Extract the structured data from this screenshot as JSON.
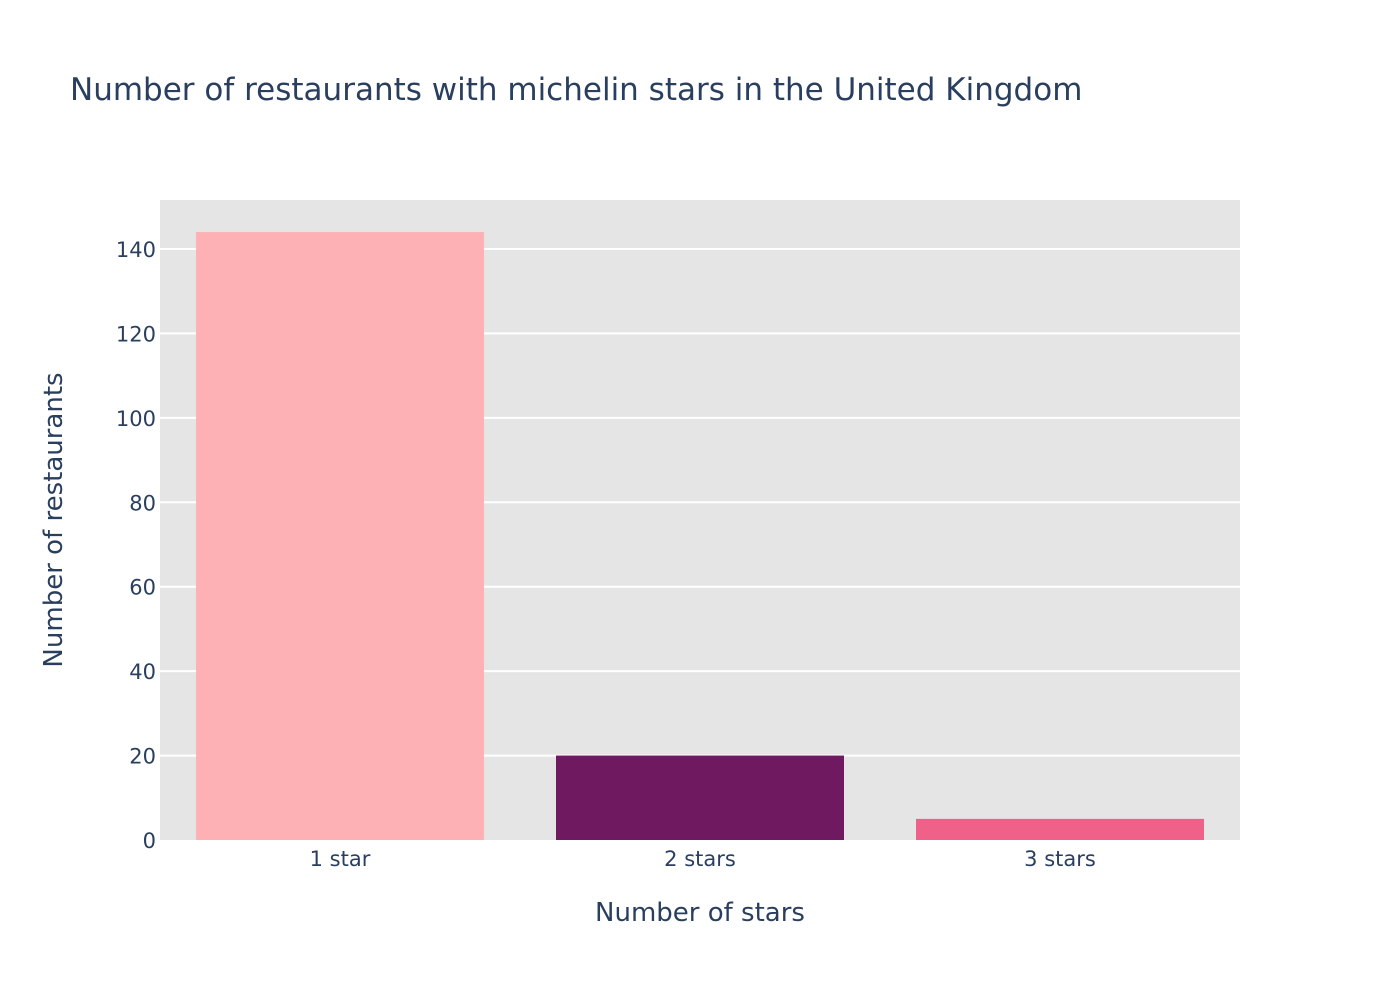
{
  "chart_data": {
    "type": "bar",
    "title": "Number of restaurants with michelin stars in the United Kingdom",
    "xlabel": "Number of stars",
    "ylabel": "Number of restaurants",
    "categories": [
      "1 star",
      "2 stars",
      "3 stars"
    ],
    "values": [
      144,
      20,
      5
    ],
    "bar_colors": [
      "#fdb1b5",
      "#6f1960",
      "#f0618a"
    ],
    "ylim": [
      0,
      151.6
    ],
    "yticks": [
      0,
      20,
      40,
      60,
      80,
      100,
      120,
      140
    ],
    "grid": true,
    "legend": "none",
    "plot_background": "#e5e5e5",
    "gridline_color": "#ffffff",
    "text_color": "#2a3f5f"
  }
}
